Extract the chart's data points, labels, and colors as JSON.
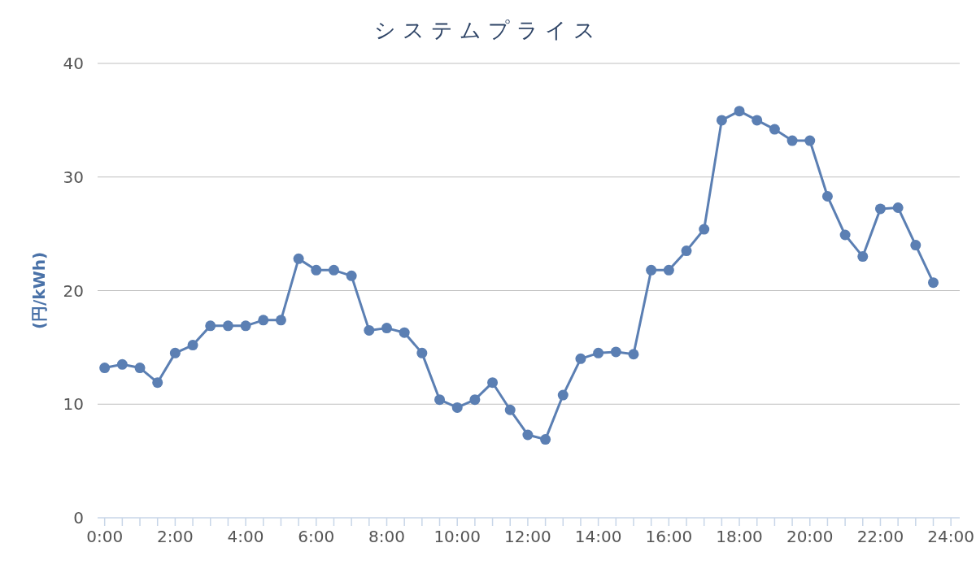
{
  "chart_data": {
    "type": "line",
    "title": "システムプライス",
    "ylabel": "(円/kWh)",
    "x": [
      0,
      0.5,
      1,
      1.5,
      2,
      2.5,
      3,
      3.5,
      4,
      4.5,
      5,
      5.5,
      6,
      6.5,
      7,
      7.5,
      8,
      8.5,
      9,
      9.5,
      10,
      10.5,
      11,
      11.5,
      12,
      12.5,
      13,
      13.5,
      14,
      14.5,
      15,
      15.5,
      16,
      16.5,
      17,
      17.5,
      18,
      18.5,
      19,
      19.5,
      20,
      20.5,
      21,
      21.5,
      22,
      22.5,
      23,
      23.5
    ],
    "series": [
      {
        "color": "#5b7fb3",
        "values": [
          13.2,
          13.5,
          13.2,
          11.9,
          14.5,
          15.2,
          16.9,
          16.9,
          16.9,
          17.4,
          17.4,
          22.8,
          21.8,
          21.8,
          21.3,
          16.5,
          16.7,
          16.3,
          14.5,
          10.4,
          9.7,
          10.4,
          11.9,
          9.5,
          7.3,
          6.9,
          10.8,
          14.0,
          14.5,
          14.6,
          14.4,
          21.8,
          21.8,
          23.5,
          25.4,
          35.0,
          35.8,
          35.0,
          34.2,
          33.2,
          33.2,
          28.3,
          24.9,
          23.0,
          27.2,
          27.3,
          24.0,
          20.7
        ]
      }
    ],
    "xlim": [
      -0.2,
      24.25
    ],
    "xticks": [
      {
        "value": 0,
        "label": "0:00"
      },
      {
        "value": 0.5,
        "label": null
      },
      {
        "value": 1,
        "label": null
      },
      {
        "value": 1.5,
        "label": null
      },
      {
        "value": 2,
        "label": "2:00"
      },
      {
        "value": 2.5,
        "label": null
      },
      {
        "value": 3,
        "label": null
      },
      {
        "value": 3.5,
        "label": null
      },
      {
        "value": 4,
        "label": "4:00"
      },
      {
        "value": 4.5,
        "label": null
      },
      {
        "value": 5,
        "label": null
      },
      {
        "value": 5.5,
        "label": null
      },
      {
        "value": 6,
        "label": "6:00"
      },
      {
        "value": 6.5,
        "label": null
      },
      {
        "value": 7,
        "label": null
      },
      {
        "value": 7.5,
        "label": null
      },
      {
        "value": 8,
        "label": "8:00"
      },
      {
        "value": 8.5,
        "label": null
      },
      {
        "value": 9,
        "label": null
      },
      {
        "value": 9.5,
        "label": null
      },
      {
        "value": 10,
        "label": "10:00"
      },
      {
        "value": 10.5,
        "label": null
      },
      {
        "value": 11,
        "label": null
      },
      {
        "value": 11.5,
        "label": null
      },
      {
        "value": 12,
        "label": "12:00"
      },
      {
        "value": 12.5,
        "label": null
      },
      {
        "value": 13,
        "label": null
      },
      {
        "value": 13.5,
        "label": null
      },
      {
        "value": 14,
        "label": "14:00"
      },
      {
        "value": 14.5,
        "label": null
      },
      {
        "value": 15,
        "label": null
      },
      {
        "value": 15.5,
        "label": null
      },
      {
        "value": 16,
        "label": "16:00"
      },
      {
        "value": 16.5,
        "label": null
      },
      {
        "value": 17,
        "label": null
      },
      {
        "value": 17.5,
        "label": null
      },
      {
        "value": 18,
        "label": "18:00"
      },
      {
        "value": 18.5,
        "label": null
      },
      {
        "value": 19,
        "label": null
      },
      {
        "value": 19.5,
        "label": null
      },
      {
        "value": 20,
        "label": "20:00"
      },
      {
        "value": 20.5,
        "label": null
      },
      {
        "value": 21,
        "label": null
      },
      {
        "value": 21.5,
        "label": null
      },
      {
        "value": 22,
        "label": "22:00"
      },
      {
        "value": 22.5,
        "label": null
      },
      {
        "value": 23,
        "label": null
      },
      {
        "value": 23.5,
        "label": null
      },
      {
        "value": 24,
        "label": "24:00"
      }
    ],
    "ylim": [
      0,
      40
    ],
    "yticks": [
      0,
      10,
      20,
      30,
      40
    ],
    "grid": "y",
    "marker": "circle",
    "line_style": "solid"
  }
}
